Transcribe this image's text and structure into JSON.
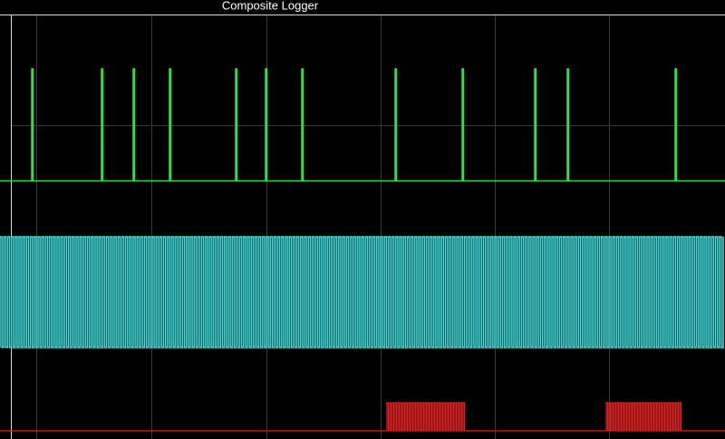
{
  "title": "Composite Logger"
}
